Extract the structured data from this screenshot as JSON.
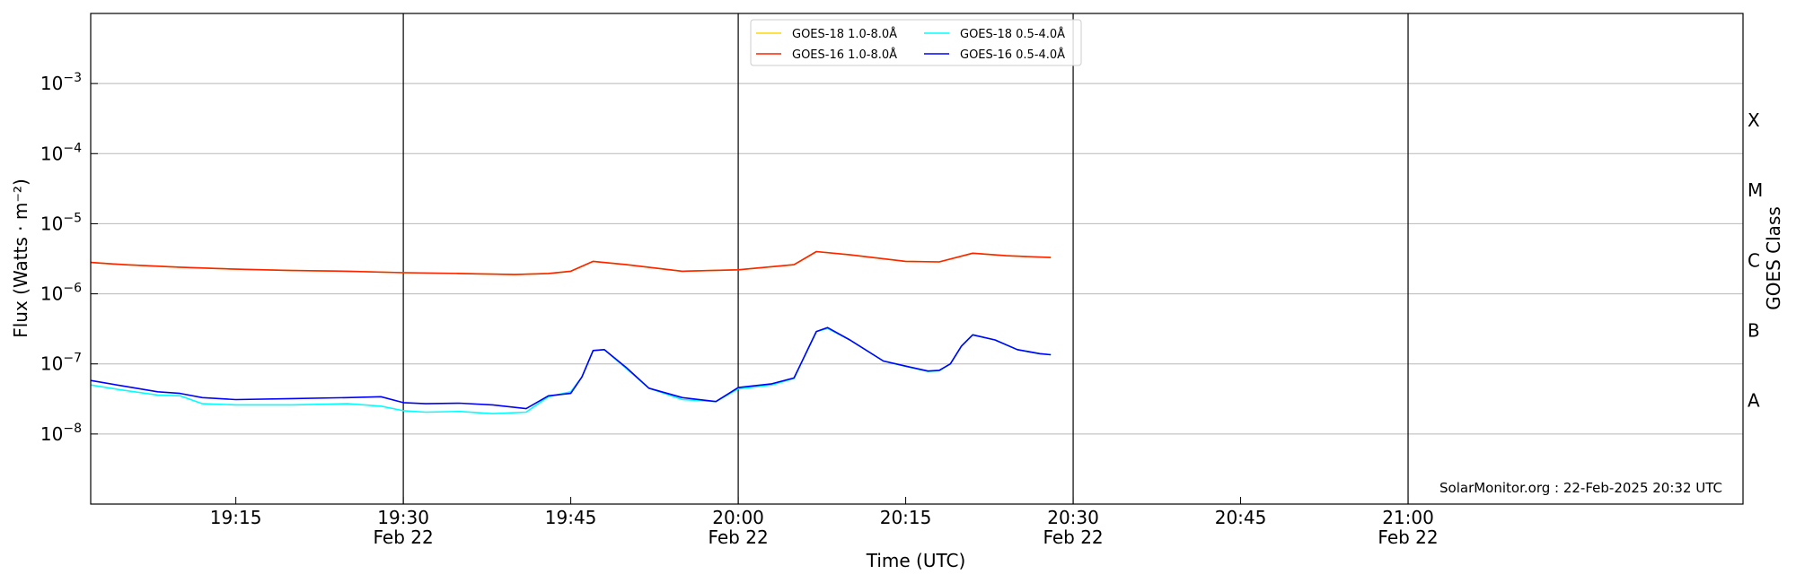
{
  "chart_data": {
    "type": "line",
    "xlabel": "Time (UTC)",
    "ylabel": "Flux (Watts · m⁻²)",
    "ylabel_right": "GOES Class",
    "xlim": [
      "19:02",
      "21:30"
    ],
    "ylim": [
      1e-09,
      0.01
    ],
    "yscale": "log",
    "grid": "horizontal",
    "x_ticks": [
      {
        "value": "19:15",
        "label": "19:15",
        "sub": ""
      },
      {
        "value": "19:30",
        "label": "19:30",
        "sub": "Feb 22"
      },
      {
        "value": "19:45",
        "label": "19:45",
        "sub": ""
      },
      {
        "value": "20:00",
        "label": "20:00",
        "sub": "Feb 22"
      },
      {
        "value": "20:15",
        "label": "20:15",
        "sub": ""
      },
      {
        "value": "20:30",
        "label": "20:30",
        "sub": "Feb 22"
      },
      {
        "value": "20:45",
        "label": "20:45",
        "sub": ""
      },
      {
        "value": "21:00",
        "label": "21:00",
        "sub": "Feb 22"
      }
    ],
    "y_ticks": [
      {
        "value": 1e-08,
        "base": "10",
        "exp": "−8"
      },
      {
        "value": 1e-07,
        "base": "10",
        "exp": "−7"
      },
      {
        "value": 1e-06,
        "base": "10",
        "exp": "−6"
      },
      {
        "value": 1e-05,
        "base": "10",
        "exp": "−5"
      },
      {
        "value": 0.0001,
        "base": "10",
        "exp": "−4"
      },
      {
        "value": 0.001,
        "base": "10",
        "exp": "−3"
      }
    ],
    "vlines": [
      "19:30",
      "20:00",
      "20:30",
      "21:00"
    ],
    "classes": [
      {
        "label": "A",
        "value": 3e-08
      },
      {
        "label": "B",
        "value": 3e-07
      },
      {
        "label": "C",
        "value": 3e-06
      },
      {
        "label": "M",
        "value": 3e-05
      },
      {
        "label": "X",
        "value": 0.0003
      }
    ],
    "legend": {
      "placement": "top-center",
      "entries": [
        {
          "label": "GOES-18 1.0-8.0Å",
          "color": "#ffd700"
        },
        {
          "label": "GOES-18 0.5-4.0Å",
          "color": "#00ffff"
        },
        {
          "label": "GOES-16 1.0-8.0Å",
          "color": "#ff2200"
        },
        {
          "label": "GOES-16 0.5-4.0Å",
          "color": "#0000ff"
        }
      ]
    },
    "credit": "SolarMonitor.org : 22-Feb-2025 20:32 UTC",
    "series": [
      {
        "name": "GOES-18 1.0-8.0Å",
        "color": "#ffd700",
        "x": [
          "19:02",
          "19:05",
          "19:10",
          "19:15",
          "19:20",
          "19:25",
          "19:30",
          "19:35",
          "19:40",
          "19:43",
          "19:45",
          "19:47",
          "19:50",
          "19:55",
          "20:00",
          "20:05",
          "20:07",
          "20:10",
          "20:15",
          "20:18",
          "20:21",
          "20:24",
          "20:28"
        ],
        "values": [
          2.8e-06,
          2.6e-06,
          2.4e-06,
          2.25e-06,
          2.15e-06,
          2.1e-06,
          2e-06,
          1.95e-06,
          1.88e-06,
          1.95e-06,
          2.1e-06,
          2.9e-06,
          2.6e-06,
          2.1e-06,
          2.2e-06,
          2.6e-06,
          4e-06,
          3.6e-06,
          2.9e-06,
          2.85e-06,
          3.8e-06,
          3.5e-06,
          3.3e-06
        ]
      },
      {
        "name": "GOES-18 0.5-4.0Å",
        "color": "#00ffff",
        "x": [
          "19:02",
          "19:05",
          "19:08",
          "19:10",
          "19:12",
          "19:15",
          "19:20",
          "19:25",
          "19:28",
          "19:30",
          "19:32",
          "19:35",
          "19:38",
          "19:41",
          "19:43",
          "19:45",
          "19:46",
          "19:47",
          "19:48",
          "19:50",
          "19:52",
          "19:55",
          "19:58",
          "20:00",
          "20:03",
          "20:05",
          "20:07",
          "20:08",
          "20:10",
          "20:13",
          "20:15",
          "20:17",
          "20:18",
          "20:19",
          "20:20",
          "20:21",
          "20:23",
          "20:25",
          "20:27",
          "20:28"
        ],
        "values": [
          5e-08,
          4.2e-08,
          3.6e-08,
          3.5e-08,
          2.7e-08,
          2.6e-08,
          2.6e-08,
          2.7e-08,
          2.5e-08,
          2.15e-08,
          2.05e-08,
          2.1e-08,
          1.95e-08,
          2.05e-08,
          3.4e-08,
          4e-08,
          6.5e-08,
          1.55e-07,
          1.6e-07,
          8.5e-08,
          4.5e-08,
          3.1e-08,
          2.9e-08,
          4.4e-08,
          5e-08,
          6.2e-08,
          2.9e-07,
          3.2e-07,
          2.2e-07,
          1.1e-07,
          9.2e-08,
          7.8e-08,
          8e-08,
          1e-07,
          1.8e-07,
          2.6e-07,
          2.2e-07,
          1.6e-07,
          1.4e-07,
          1.35e-07
        ]
      },
      {
        "name": "GOES-16 1.0-8.0Å",
        "color": "#ff2200",
        "x": [
          "19:02",
          "19:05",
          "19:10",
          "19:15",
          "19:20",
          "19:25",
          "19:30",
          "19:35",
          "19:40",
          "19:43",
          "19:45",
          "19:47",
          "19:50",
          "19:55",
          "20:00",
          "20:05",
          "20:07",
          "20:10",
          "20:15",
          "20:18",
          "20:21",
          "20:24",
          "20:28"
        ],
        "values": [
          2.8e-06,
          2.6e-06,
          2.4e-06,
          2.25e-06,
          2.15e-06,
          2.1e-06,
          2e-06,
          1.95e-06,
          1.88e-06,
          1.95e-06,
          2.1e-06,
          2.9e-06,
          2.6e-06,
          2.1e-06,
          2.2e-06,
          2.6e-06,
          4e-06,
          3.6e-06,
          2.9e-06,
          2.85e-06,
          3.8e-06,
          3.5e-06,
          3.3e-06
        ]
      },
      {
        "name": "GOES-16 0.5-4.0Å",
        "color": "#0000ff",
        "x": [
          "19:02",
          "19:05",
          "19:08",
          "19:10",
          "19:12",
          "19:15",
          "19:20",
          "19:25",
          "19:28",
          "19:30",
          "19:32",
          "19:35",
          "19:38",
          "19:41",
          "19:43",
          "19:45",
          "19:46",
          "19:47",
          "19:48",
          "19:50",
          "19:52",
          "19:55",
          "19:58",
          "20:00",
          "20:03",
          "20:05",
          "20:07",
          "20:08",
          "20:10",
          "20:13",
          "20:15",
          "20:17",
          "20:18",
          "20:19",
          "20:20",
          "20:21",
          "20:23",
          "20:25",
          "20:27",
          "20:28"
        ],
        "values": [
          5.8e-08,
          4.8e-08,
          4e-08,
          3.8e-08,
          3.3e-08,
          3.1e-08,
          3.2e-08,
          3.3e-08,
          3.4e-08,
          2.8e-08,
          2.7e-08,
          2.75e-08,
          2.6e-08,
          2.3e-08,
          3.5e-08,
          3.8e-08,
          6.5e-08,
          1.55e-07,
          1.6e-07,
          8.8e-08,
          4.5e-08,
          3.3e-08,
          2.9e-08,
          4.6e-08,
          5.2e-08,
          6.3e-08,
          2.9e-07,
          3.3e-07,
          2.2e-07,
          1.1e-07,
          9.3e-08,
          7.9e-08,
          8.1e-08,
          1e-07,
          1.8e-07,
          2.6e-07,
          2.2e-07,
          1.6e-07,
          1.4e-07,
          1.35e-07
        ]
      }
    ]
  }
}
